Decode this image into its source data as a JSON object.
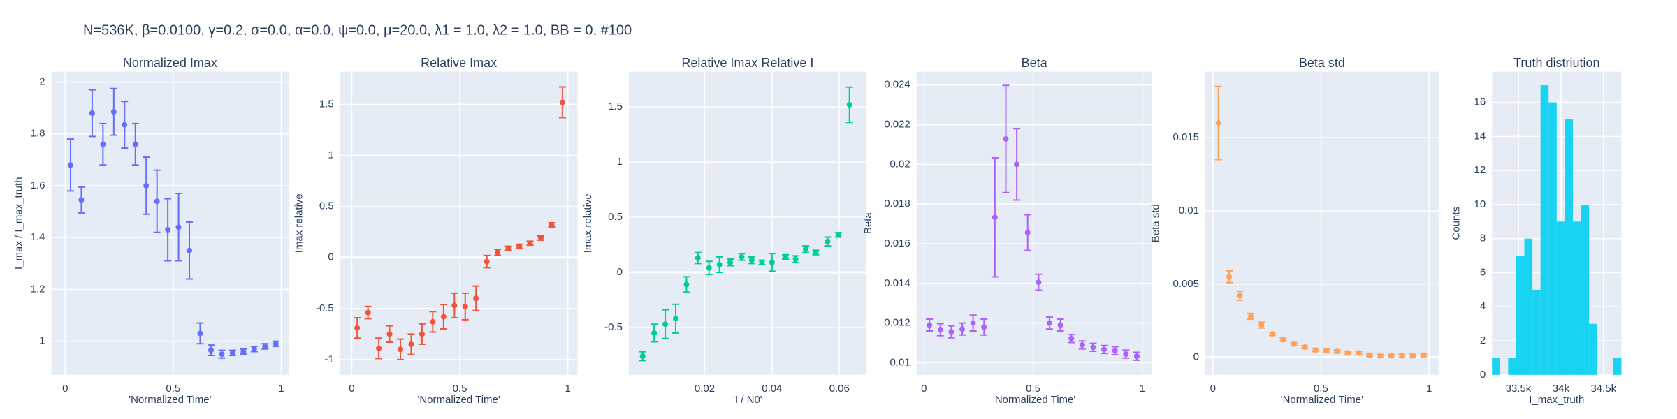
{
  "title": "N=536K, β=0.0100, γ=0.2, σ=0.0,  α=0.0, ψ=0.0, μ=20.0, λ1 = 1.0, λ2 = 1.0, BB = 0, #100",
  "chart_data": [
    {
      "type": "scatter",
      "title": "Normalized Imax",
      "x_label": "'Normalized Time'",
      "y_label": "I_max / I_max_truth",
      "color": "#636efa",
      "x": [
        0.025,
        0.075,
        0.125,
        0.175,
        0.225,
        0.275,
        0.325,
        0.375,
        0.425,
        0.475,
        0.525,
        0.575,
        0.625,
        0.675,
        0.725,
        0.775,
        0.825,
        0.875,
        0.925,
        0.975
      ],
      "values": [
        1.68,
        1.545,
        1.88,
        1.76,
        1.885,
        1.835,
        1.76,
        1.6,
        1.54,
        1.43,
        1.44,
        1.35,
        1.03,
        0.965,
        0.95,
        0.955,
        0.96,
        0.97,
        0.98,
        0.99
      ],
      "errors": [
        0.1,
        0.05,
        0.09,
        0.08,
        0.09,
        0.09,
        0.08,
        0.11,
        0.12,
        0.12,
        0.13,
        0.11,
        0.04,
        0.02,
        0.015,
        0.01,
        0.01,
        0.01,
        0.01,
        0.01
      ],
      "xlim": [
        -0.064,
        1.035
      ],
      "ylim": [
        0.87,
        2.04
      ],
      "xticks": [
        0,
        0.5,
        1
      ],
      "yticks": [
        1,
        1.2,
        1.4,
        1.6,
        1.8,
        2
      ],
      "grid": true
    },
    {
      "type": "scatter",
      "title": "Relative Imax",
      "x_label": "'Normalized Time'",
      "y_label": "Imax relative",
      "color": "#ef553b",
      "x": [
        0.025,
        0.075,
        0.125,
        0.175,
        0.225,
        0.275,
        0.325,
        0.375,
        0.425,
        0.475,
        0.525,
        0.575,
        0.625,
        0.675,
        0.725,
        0.775,
        0.825,
        0.875,
        0.925,
        0.975
      ],
      "values": [
        -0.69,
        -0.54,
        -0.89,
        -0.75,
        -0.9,
        -0.85,
        -0.75,
        -0.63,
        -0.58,
        -0.47,
        -0.48,
        -0.4,
        -0.04,
        0.05,
        0.09,
        0.11,
        0.14,
        0.19,
        0.32,
        1.52
      ],
      "errors": [
        0.1,
        0.06,
        0.1,
        0.08,
        0.1,
        0.1,
        0.1,
        0.1,
        0.12,
        0.12,
        0.13,
        0.12,
        0.06,
        0.03,
        0.02,
        0.02,
        0.02,
        0.02,
        0.02,
        0.15
      ],
      "xlim": [
        -0.054,
        1.045
      ],
      "ylim": [
        -1.15,
        1.82
      ],
      "xticks": [
        0,
        0.5,
        1
      ],
      "yticks": [
        -1,
        -0.5,
        0,
        0.5,
        1,
        1.5
      ],
      "grid": true
    },
    {
      "type": "scatter",
      "title": "Relative Imax Relative I",
      "x_label": "'I / N0'",
      "y_label": "Imax relative",
      "color": "#00cc96",
      "x": [
        0.0016,
        0.005,
        0.0083,
        0.0114,
        0.0146,
        0.018,
        0.0213,
        0.0244,
        0.0276,
        0.031,
        0.034,
        0.037,
        0.04,
        0.044,
        0.047,
        0.05,
        0.053,
        0.0565,
        0.0597,
        0.063
      ],
      "values": [
        -0.76,
        -0.55,
        -0.47,
        -0.42,
        -0.11,
        0.13,
        0.04,
        0.07,
        0.09,
        0.14,
        0.11,
        0.09,
        0.09,
        0.14,
        0.12,
        0.21,
        0.18,
        0.28,
        0.34,
        1.52
      ],
      "errors": [
        0.04,
        0.08,
        0.13,
        0.13,
        0.07,
        0.05,
        0.06,
        0.07,
        0.03,
        0.03,
        0.03,
        0.02,
        0.08,
        0.02,
        0.03,
        0.03,
        0.02,
        0.04,
        0.02,
        0.16
      ],
      "xlim": [
        -0.0025,
        0.068
      ],
      "ylim": [
        -0.93,
        1.82
      ],
      "xticks": [
        0.02,
        0.04,
        0.06
      ],
      "yticks": [
        -0.5,
        0,
        0.5,
        1,
        1.5
      ],
      "grid": true
    },
    {
      "type": "scatter",
      "title": "Beta",
      "x_label": "'Normalized Time'",
      "y_label": "Beta",
      "color": "#ab63fa",
      "x": [
        0.025,
        0.075,
        0.125,
        0.175,
        0.225,
        0.275,
        0.325,
        0.375,
        0.425,
        0.475,
        0.525,
        0.575,
        0.625,
        0.675,
        0.725,
        0.775,
        0.825,
        0.875,
        0.925,
        0.975
      ],
      "values": [
        0.0119,
        0.01167,
        0.01156,
        0.0117,
        0.012,
        0.0118,
        0.01733,
        0.02128,
        0.02,
        0.01656,
        0.01406,
        0.012,
        0.0119,
        0.01122,
        0.0109,
        0.01078,
        0.01067,
        0.01061,
        0.01044,
        0.01033
      ],
      "errors": [
        0.0003,
        0.0003,
        0.0003,
        0.0003,
        0.0004,
        0.0004,
        0.003,
        0.0027,
        0.0018,
        0.0009,
        0.0004,
        0.0003,
        0.0003,
        0.0002,
        0.0002,
        0.0002,
        0.0002,
        0.0002,
        0.0002,
        0.0002
      ],
      "xlim": [
        -0.034,
        1.044
      ],
      "ylim": [
        0.00939,
        0.02467
      ],
      "xticks": [
        0,
        0.5,
        1
      ],
      "yticks": [
        0.01,
        0.012,
        0.014,
        0.016,
        0.018,
        0.02,
        0.022,
        0.024
      ],
      "grid": true
    },
    {
      "type": "scatter",
      "title": "Beta std",
      "x_label": "'Normalized Time'",
      "y_label": "Beta std",
      "color": "#ffa15a",
      "x": [
        0.025,
        0.075,
        0.125,
        0.175,
        0.225,
        0.275,
        0.325,
        0.375,
        0.425,
        0.475,
        0.525,
        0.575,
        0.625,
        0.675,
        0.725,
        0.775,
        0.825,
        0.875,
        0.925,
        0.975
      ],
      "values": [
        0.016,
        0.0055,
        0.0042,
        0.0028,
        0.0022,
        0.0016,
        0.0012,
        0.0009,
        0.0007,
        0.0005,
        0.00045,
        0.0004,
        0.0003,
        0.0003,
        0.00015,
        0.0001,
        0.0001,
        0.0001,
        0.0001,
        0.00015
      ],
      "errors": [
        0.0025,
        0.0004,
        0.0003,
        0.0002,
        0.0002,
        0.0001,
        0.0001,
        0.0001,
        0.0001,
        0.0001,
        0.0001,
        0.0001,
        0.0001,
        0.0001,
        0.0001,
        0.0001,
        0.0001,
        0.0001,
        0.0001,
        0.0001
      ],
      "xlim": [
        -0.035,
        1.044
      ],
      "ylim": [
        -0.0012,
        0.0195
      ],
      "xticks": [
        0,
        0.5,
        1
      ],
      "yticks": [
        0,
        0.005,
        0.01,
        0.015
      ],
      "grid": true
    },
    {
      "type": "histogram",
      "title": "Truth distriution",
      "x_label": "I_max_truth",
      "y_label": "Counts",
      "color": "#19d3f3",
      "bins": [
        33190,
        33285,
        33380,
        33475,
        33570,
        33665,
        33760,
        33855,
        33950,
        34045,
        34140,
        34235,
        34330,
        34425,
        34520,
        34615,
        34710
      ],
      "values": [
        1,
        0,
        1,
        7,
        8,
        5,
        17,
        16,
        9,
        15,
        9,
        10,
        3,
        0,
        0,
        1
      ],
      "xlim": [
        33190,
        34710
      ],
      "ylim": [
        0,
        17.8
      ],
      "xticks": [
        {
          "value": 33500,
          "label": "33.5k"
        },
        {
          "value": 34000,
          "label": "34k"
        },
        {
          "value": 34500,
          "label": "34.5k"
        }
      ],
      "yticks": [
        0,
        2,
        4,
        6,
        8,
        10,
        12,
        14,
        16
      ],
      "grid": true
    }
  ]
}
